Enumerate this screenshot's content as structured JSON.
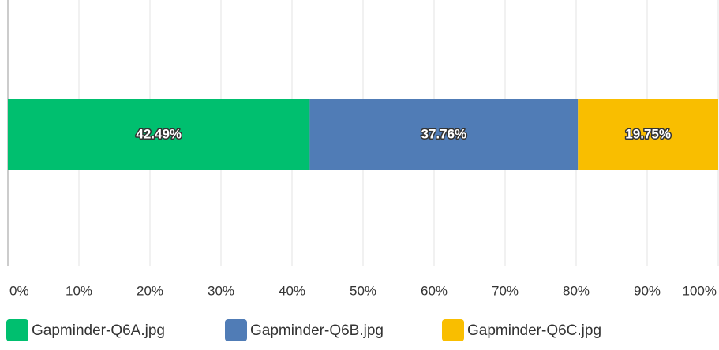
{
  "chart_data": {
    "type": "stacked_bar_horizontal",
    "categories": [
      null
    ],
    "series": [
      {
        "name": "Gapminder-Q6A.jpg",
        "color": "#00bf6f",
        "values": [
          42.49
        ],
        "value_labels": [
          "42.49%"
        ]
      },
      {
        "name": "Gapminder-Q6B.jpg",
        "color": "#507cb6",
        "values": [
          37.76
        ],
        "value_labels": [
          "37.76%"
        ]
      },
      {
        "name": "Gapminder-Q6C.jpg",
        "color": "#f9be00",
        "values": [
          19.75
        ],
        "value_labels": [
          "19.75%"
        ]
      }
    ],
    "xlim": [
      0,
      100
    ],
    "xticks": [
      {
        "value": 0,
        "label": "0%"
      },
      {
        "value": 10,
        "label": "10%"
      },
      {
        "value": 20,
        "label": "20%"
      },
      {
        "value": 30,
        "label": "30%"
      },
      {
        "value": 40,
        "label": "40%"
      },
      {
        "value": 50,
        "label": "50%"
      },
      {
        "value": 60,
        "label": "60%"
      },
      {
        "value": 70,
        "label": "70%"
      },
      {
        "value": 80,
        "label": "80%"
      },
      {
        "value": 90,
        "label": "90%"
      },
      {
        "value": 100,
        "label": "100%"
      }
    ],
    "grid": true,
    "legend": "bottom"
  }
}
